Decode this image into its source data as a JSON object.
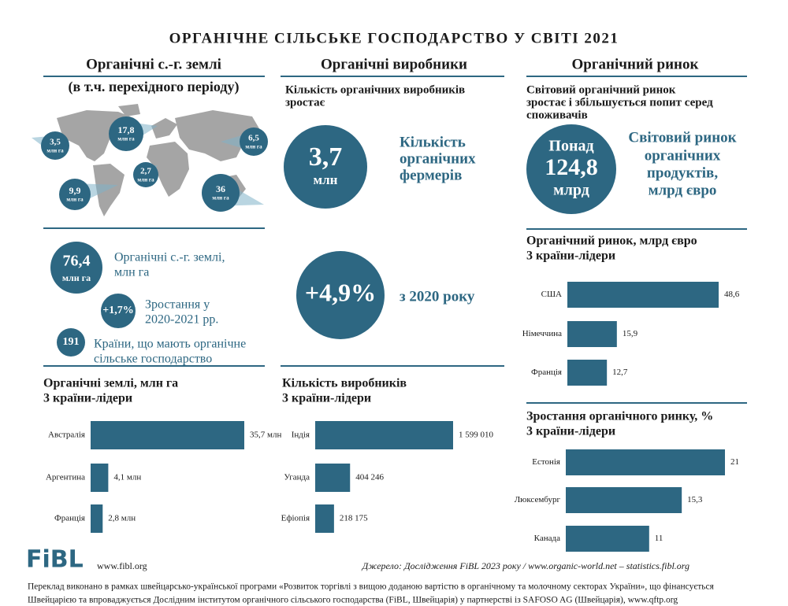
{
  "title": "ОРГАНІЧНЕ СІЛЬСЬКЕ ГОСПОДАРСТВО У СВІТІ 2021",
  "columns": [
    "Органічні с.-г. землі",
    "Органічні виробники",
    "Органічний ринок"
  ],
  "land": {
    "subtitle": "(в т.ч. перехідного періоду)",
    "map_bubbles": [
      {
        "value": "3,5",
        "unit": "млн га"
      },
      {
        "value": "17,8",
        "unit": "млн га"
      },
      {
        "value": "6,5",
        "unit": "млн га"
      },
      {
        "value": "2,7",
        "unit": "млн га"
      },
      {
        "value": "9,9",
        "unit": "млн га"
      },
      {
        "value": "36",
        "unit": "млн га"
      }
    ],
    "total": {
      "value": "76,4",
      "unit": "млн га",
      "label_lines": [
        "Органічні с.-г. землі,",
        "млн га"
      ]
    },
    "growth": {
      "value": "+1,7%",
      "label_lines": [
        "Зростання у",
        "2020-2021 рр."
      ]
    },
    "countries": {
      "value": "191",
      "label_lines": [
        "Країни, що мають органічне",
        "сільське господарство"
      ]
    }
  },
  "producers": {
    "heading_lines": [
      "Кількість органічних виробників",
      "зростає"
    ],
    "farmers": {
      "value": "3,7",
      "unit": "млн",
      "label_lines": [
        "Кількість",
        "органічних",
        "фермерів"
      ]
    },
    "growth": {
      "value": "+4,9%",
      "label": "з 2020 року"
    }
  },
  "market": {
    "heading_lines": [
      "Світовий органічний ринок",
      "зростає і збільшується попит серед",
      "споживачів"
    ],
    "bubble_lines": [
      "Понад",
      "124,8",
      "млрд"
    ],
    "label_lines": [
      "Світовий ринок",
      "органічних",
      "продуктів,",
      "млрд євро"
    ]
  },
  "chart_data": [
    {
      "type": "bar",
      "orientation": "horizontal",
      "title": "Органічні землі, млн га",
      "subtitle": "3 країни-лідери",
      "categories": [
        "Австралія",
        "Аргентина",
        "Франція"
      ],
      "values": [
        35.7,
        4.1,
        2.8
      ],
      "value_labels": [
        "35,7 млн",
        "4,1 млн",
        "2,8 млн"
      ],
      "color": "#2d6782"
    },
    {
      "type": "bar",
      "orientation": "horizontal",
      "title": "Кількість виробників",
      "subtitle": "3 країни-лідери",
      "categories": [
        "Індія",
        "Уганда",
        "Ефіопія"
      ],
      "values": [
        1599010,
        404246,
        218175
      ],
      "value_labels": [
        "1 599 010",
        "404 246",
        "218 175"
      ],
      "color": "#2d6782"
    },
    {
      "type": "bar",
      "orientation": "horizontal",
      "title": "Органічний ринок, млрд євро",
      "subtitle": "3 країни-лідери",
      "categories": [
        "США",
        "Німеччина",
        "Франція"
      ],
      "values": [
        48.6,
        15.9,
        12.7
      ],
      "value_labels": [
        "48,6",
        "15,9",
        "12,7"
      ],
      "color": "#2d6782"
    },
    {
      "type": "bar",
      "orientation": "horizontal",
      "title": "Зростання органічного ринку, %",
      "subtitle": "3 країни-лідери",
      "categories": [
        "Естонія",
        "Люксембург",
        "Канада"
      ],
      "values": [
        21,
        15.3,
        11
      ],
      "value_labels": [
        "21",
        "15,3",
        "11"
      ],
      "color": "#2d6782"
    }
  ],
  "footer": {
    "logo": "FiBL",
    "website": "www.fibl.org",
    "source": "Джерело: Дослідження FiBL 2023 року / www.organic-world.net – statistics.fibl.org",
    "note_lines": [
      "Переклад виконано в рамках швейцарсько-української програми «Розвиток торгівлі з вищою доданою вартістю в органічному та молочному секторах України», що фінансується",
      "Швейцарією та впроваджується Дослідним інститутом органічного сільського господарства (FiBL, Швейцарія) у партнерстві із SAFOSO AG (Швейцарія), www.qftp.org"
    ]
  }
}
